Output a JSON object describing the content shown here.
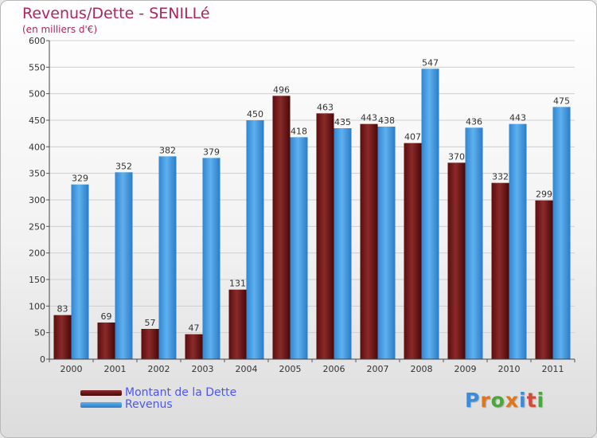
{
  "chart_data": {
    "type": "bar",
    "title": "Revenus/Dette - SENILLé",
    "subtitle": "(en milliers d'€)",
    "categories": [
      "2000",
      "2001",
      "2002",
      "2003",
      "2004",
      "2005",
      "2006",
      "2007",
      "2008",
      "2009",
      "2010",
      "2011"
    ],
    "series": [
      {
        "name": "Montant de la Dette",
        "color": "#7a1a1a",
        "values": [
          83,
          69,
          57,
          47,
          131,
          496,
          463,
          443,
          407,
          370,
          332,
          299
        ]
      },
      {
        "name": "Revenus",
        "color": "#4da3e6",
        "values": [
          329,
          352,
          382,
          379,
          450,
          418,
          435,
          438,
          547,
          436,
          443,
          475
        ]
      }
    ],
    "ylim": [
      0,
      600
    ],
    "yticks": [
      "0",
      "50",
      "100",
      "150",
      "200",
      "250",
      "300",
      "350",
      "400",
      "450",
      "500",
      "550",
      "600"
    ],
    "grid": true,
    "legend_position": "bottom-left"
  },
  "logo": {
    "text": "Proxiti",
    "letters": [
      "P",
      "r",
      "o",
      "x",
      "i",
      "t",
      "i"
    ]
  }
}
